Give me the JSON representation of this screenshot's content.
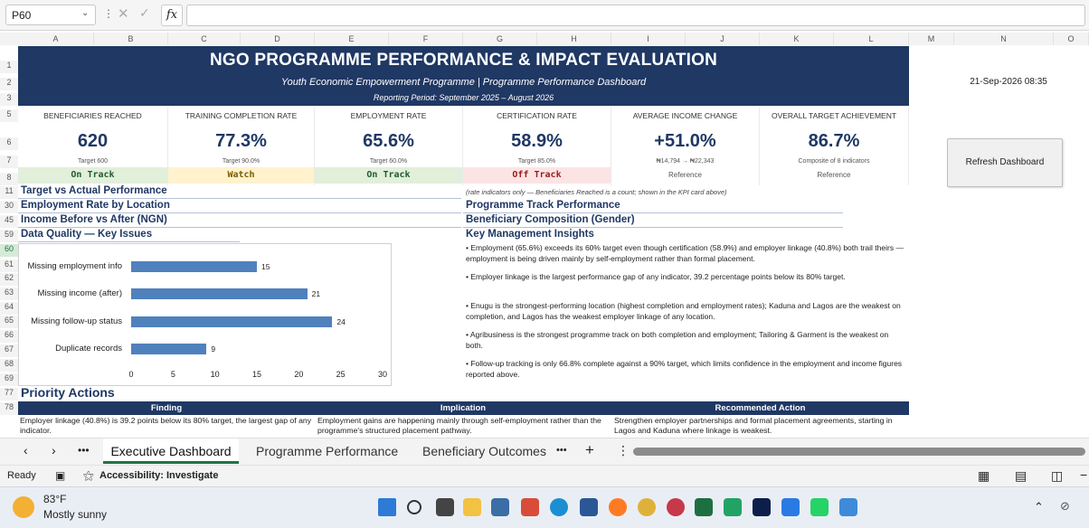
{
  "formula_bar": {
    "name_box": "P60",
    "fx": "fx"
  },
  "columns": [
    "A",
    "B",
    "C",
    "D",
    "E",
    "F",
    "G",
    "H",
    "I",
    "J",
    "K",
    "L",
    "M",
    "N",
    "O"
  ],
  "rows": [
    "1",
    "2",
    "3",
    "5",
    "6",
    "7",
    "8",
    "11",
    "30",
    "45",
    "59",
    "60",
    "61",
    "62",
    "63",
    "64",
    "65",
    "66",
    "67",
    "68",
    "69",
    "77",
    "78"
  ],
  "dashboard": {
    "title": "NGO PROGRAMME PERFORMANCE & IMPACT EVALUATION",
    "subtitle": "Youth Economic Empowerment Programme | Programme Performance Dashboard",
    "period": "Reporting Period: September 2025 – August 2026",
    "timestamp": "21-Sep-2026 08:35",
    "refresh_label": "Refresh Dashboard"
  },
  "kpis": [
    {
      "label": "Beneficiaries Reached",
      "value": "620",
      "target": "Target 600",
      "status": "On Track",
      "status_color": "#e2efda"
    },
    {
      "label": "Training Completion Rate",
      "value": "77.3%",
      "target": "Target 90.0%",
      "status": "Watch",
      "status_color": "#fff2cc"
    },
    {
      "label": "Employment Rate",
      "value": "65.6%",
      "target": "Target 60.0%",
      "status": "On Track",
      "status_color": "#e2efda"
    },
    {
      "label": "Certification Rate",
      "value": "58.9%",
      "target": "Target 85.0%",
      "status": "Off Track",
      "status_color": "#fce4e4"
    },
    {
      "label": "Average Income Change",
      "value": "+51.0%",
      "target": "₦14,794 → ₦22,343",
      "status": "Reference",
      "status_color": "#ffffff"
    },
    {
      "label": "Overall Target Achievement",
      "value": "86.7%",
      "target": "Composite of 8 indicators",
      "status": "Reference",
      "status_color": "#ffffff"
    }
  ],
  "sections": {
    "target_vs_actual": "Target vs Actual Performance",
    "rate_note": "(rate indicators only — Beneficiaries Reached is a count; shown in the KPI card above)",
    "employment_location": "Employment Rate by Location",
    "programme_track": "Programme Track Performance",
    "income_before_after": "Income Before vs After (NGN)",
    "beneficiary_gender": "Beneficiary Composition (Gender)",
    "data_quality": "Data Quality — Key Issues",
    "insights_title": "Key Management Insights",
    "priority_actions": "Priority Actions"
  },
  "chart_data": {
    "type": "bar",
    "orientation": "horizontal",
    "categories": [
      "Missing employment info",
      "Missing income (after)",
      "Missing follow-up status",
      "Duplicate records"
    ],
    "values": [
      15,
      21,
      24,
      9
    ],
    "xlim": [
      0,
      30
    ],
    "xticks": [
      0,
      5,
      10,
      15,
      20,
      25,
      30
    ],
    "color": "#4f81bd",
    "grid": false
  },
  "insights": [
    "• Employment (65.6%) exceeds its 60% target even though certification (58.9%) and employer linkage (40.8%) both trail theirs — employment is being driven mainly by self-employment rather than formal placement.",
    "• Employer linkage is the largest performance gap of any indicator, 39.2 percentage points below its 80% target.",
    "• Enugu is the strongest-performing location (highest completion and employment rates); Kaduna and Lagos are the weakest on completion, and Lagos has the weakest employer linkage of any location.",
    "• Agribusiness is the strongest programme track on both completion and employment; Tailoring & Garment is the weakest on both.",
    "• Follow-up tracking is only 66.8% complete against a 90% target, which limits confidence in the employment and income figures reported above."
  ],
  "priority_table": {
    "headers": [
      "Finding",
      "Implication",
      "Recommended Action"
    ],
    "row": [
      "Employer linkage (40.8%) is 39.2 points below its 80% target, the largest gap of any indicator.",
      "Employment gains are happening mainly through self-employment rather than the programme's structured placement pathway.",
      "Strengthen employer partnerships and formal placement agreements, starting in Lagos and Kaduna where linkage is weakest."
    ]
  },
  "sheet_tabs": [
    "Executive Dashboard",
    "Programme Performance",
    "Beneficiary Outcomes"
  ],
  "status_bar": {
    "ready": "Ready",
    "accessibility": "Accessibility: Investigate"
  },
  "taskbar": {
    "temperature": "83°F",
    "weather": "Mostly sunny"
  }
}
